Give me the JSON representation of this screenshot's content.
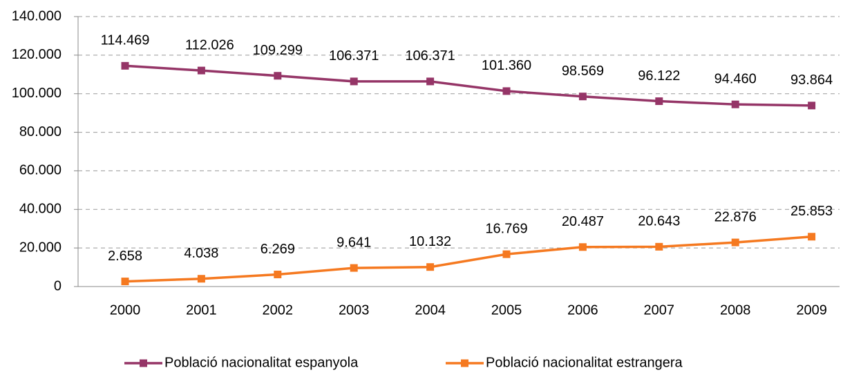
{
  "chart_data": {
    "type": "line",
    "categories": [
      "2000",
      "2001",
      "2002",
      "2003",
      "2004",
      "2005",
      "2006",
      "2007",
      "2008",
      "2009"
    ],
    "series": [
      {
        "name": "Població nacionalitat espanyola",
        "color": "#953567",
        "values": [
          114469,
          112026,
          109299,
          106371,
          106371,
          101360,
          98569,
          96122,
          94460,
          93864
        ],
        "value_labels": [
          "114.469",
          "112.026",
          "109.299",
          "106.371",
          "106.371",
          "101.360",
          "98.569",
          "96.122",
          "94.460",
          "93.864"
        ]
      },
      {
        "name": "Població nacionalitat estrangera",
        "color": "#f57920",
        "values": [
          2658,
          4038,
          6269,
          9641,
          10132,
          16769,
          20487,
          20643,
          22876,
          25853
        ],
        "value_labels": [
          "2.658",
          "4.038",
          "6.269",
          "9.641",
          "10.132",
          "16.769",
          "20.487",
          "20.643",
          "22.876",
          "25.853"
        ]
      }
    ],
    "ylim": [
      0,
      140000
    ],
    "yticks": [
      0,
      {
        "value": 20000,
        "label": "20.000"
      },
      {
        "value": 40000,
        "label": "40.000"
      },
      {
        "value": 60000,
        "label": "60.000"
      },
      {
        "value": 80000,
        "label": "80.000"
      },
      {
        "value": 100000,
        "label": "100.000"
      },
      {
        "value": 120000,
        "label": "120.000"
      },
      {
        "value": 140000,
        "label": "140.000"
      }
    ],
    "grid": true,
    "legend": "bottom"
  }
}
